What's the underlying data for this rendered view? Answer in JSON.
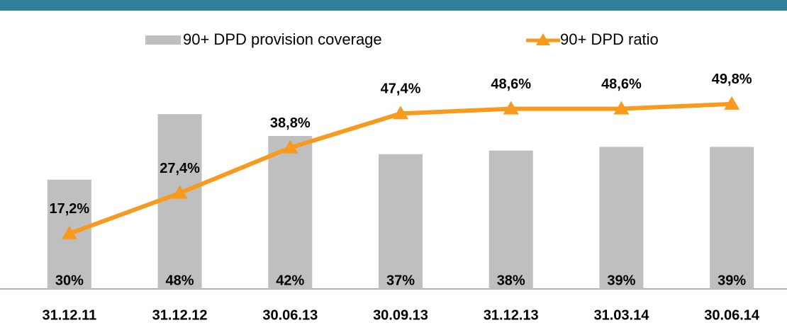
{
  "chart_data": {
    "type": "bar",
    "categories": [
      "31.12.11",
      "31.12.12",
      "30.06.13",
      "30.09.13",
      "31.12.13",
      "31.03.14",
      "30.06.14"
    ],
    "series": [
      {
        "name": "90+ DPD provision coverage",
        "type": "bar",
        "color": "#bfbfbf",
        "values": [
          30,
          48,
          42,
          37,
          38,
          39,
          39
        ],
        "value_labels": [
          "30%",
          "48%",
          "42%",
          "37%",
          "38%",
          "39%",
          "39%"
        ]
      },
      {
        "name": "90+ DPD ratio",
        "type": "line",
        "axis": "y2",
        "color": "#f79a1e",
        "values": [
          17.2,
          27.4,
          38.8,
          47.4,
          48.6,
          48.6,
          49.8
        ],
        "value_labels": [
          "17,2%",
          "27,4%",
          "38,8%",
          "47,4%",
          "48,6%",
          "48,6%",
          "49,8%"
        ]
      }
    ],
    "ylim": [
      0,
      70
    ],
    "y2lim": [
      3.3,
      67.4
    ],
    "legend": "top"
  }
}
